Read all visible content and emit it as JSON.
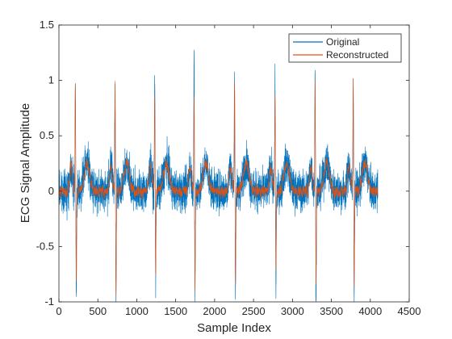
{
  "chart_data": {
    "type": "line",
    "xlabel": "Sample Index",
    "ylabel": "ECG Signal Amplitude",
    "xlim": [
      0,
      4500
    ],
    "ylim": [
      -1,
      1.5
    ],
    "xticks": [
      0,
      500,
      1000,
      1500,
      2000,
      2500,
      3000,
      3500,
      4000,
      4500
    ],
    "yticks": [
      -1,
      -0.5,
      0,
      0.5,
      1,
      1.5
    ],
    "ytick_labels": [
      "-1",
      "-0.5",
      "0",
      "0.5",
      "1",
      "1.5"
    ],
    "grid": false,
    "legend_position": "top-right",
    "sample_count": 4096,
    "beat_centers": [
      210,
      720,
      1230,
      1735,
      2255,
      2775,
      3290,
      3780
    ],
    "beat_peaks_original": [
      0.95,
      1.04,
      1.0,
      1.16,
      1.08,
      1.0,
      1.06,
      1.02
    ],
    "beat_troughs_original": [
      -0.97,
      -0.97,
      -0.8,
      -0.95,
      -0.92,
      -0.87,
      -0.93,
      -0.93
    ],
    "beat_peaks_reconstructed": [
      0.98,
      1.0,
      0.88,
      0.82,
      1.0,
      0.82,
      1.0,
      1.03
    ],
    "beat_troughs_reconstructed": [
      -0.85,
      -0.95,
      -0.75,
      -0.9,
      -0.82,
      -0.75,
      -0.85,
      -0.9
    ],
    "series": [
      {
        "name": "Original",
        "color": "#0072BD",
        "noise_amplitude": 0.17
      },
      {
        "name": "Reconstructed",
        "color": "#D95319",
        "noise_amplitude": 0.07
      }
    ]
  },
  "legend": {
    "original": "Original",
    "reconstructed": "Reconstructed"
  }
}
